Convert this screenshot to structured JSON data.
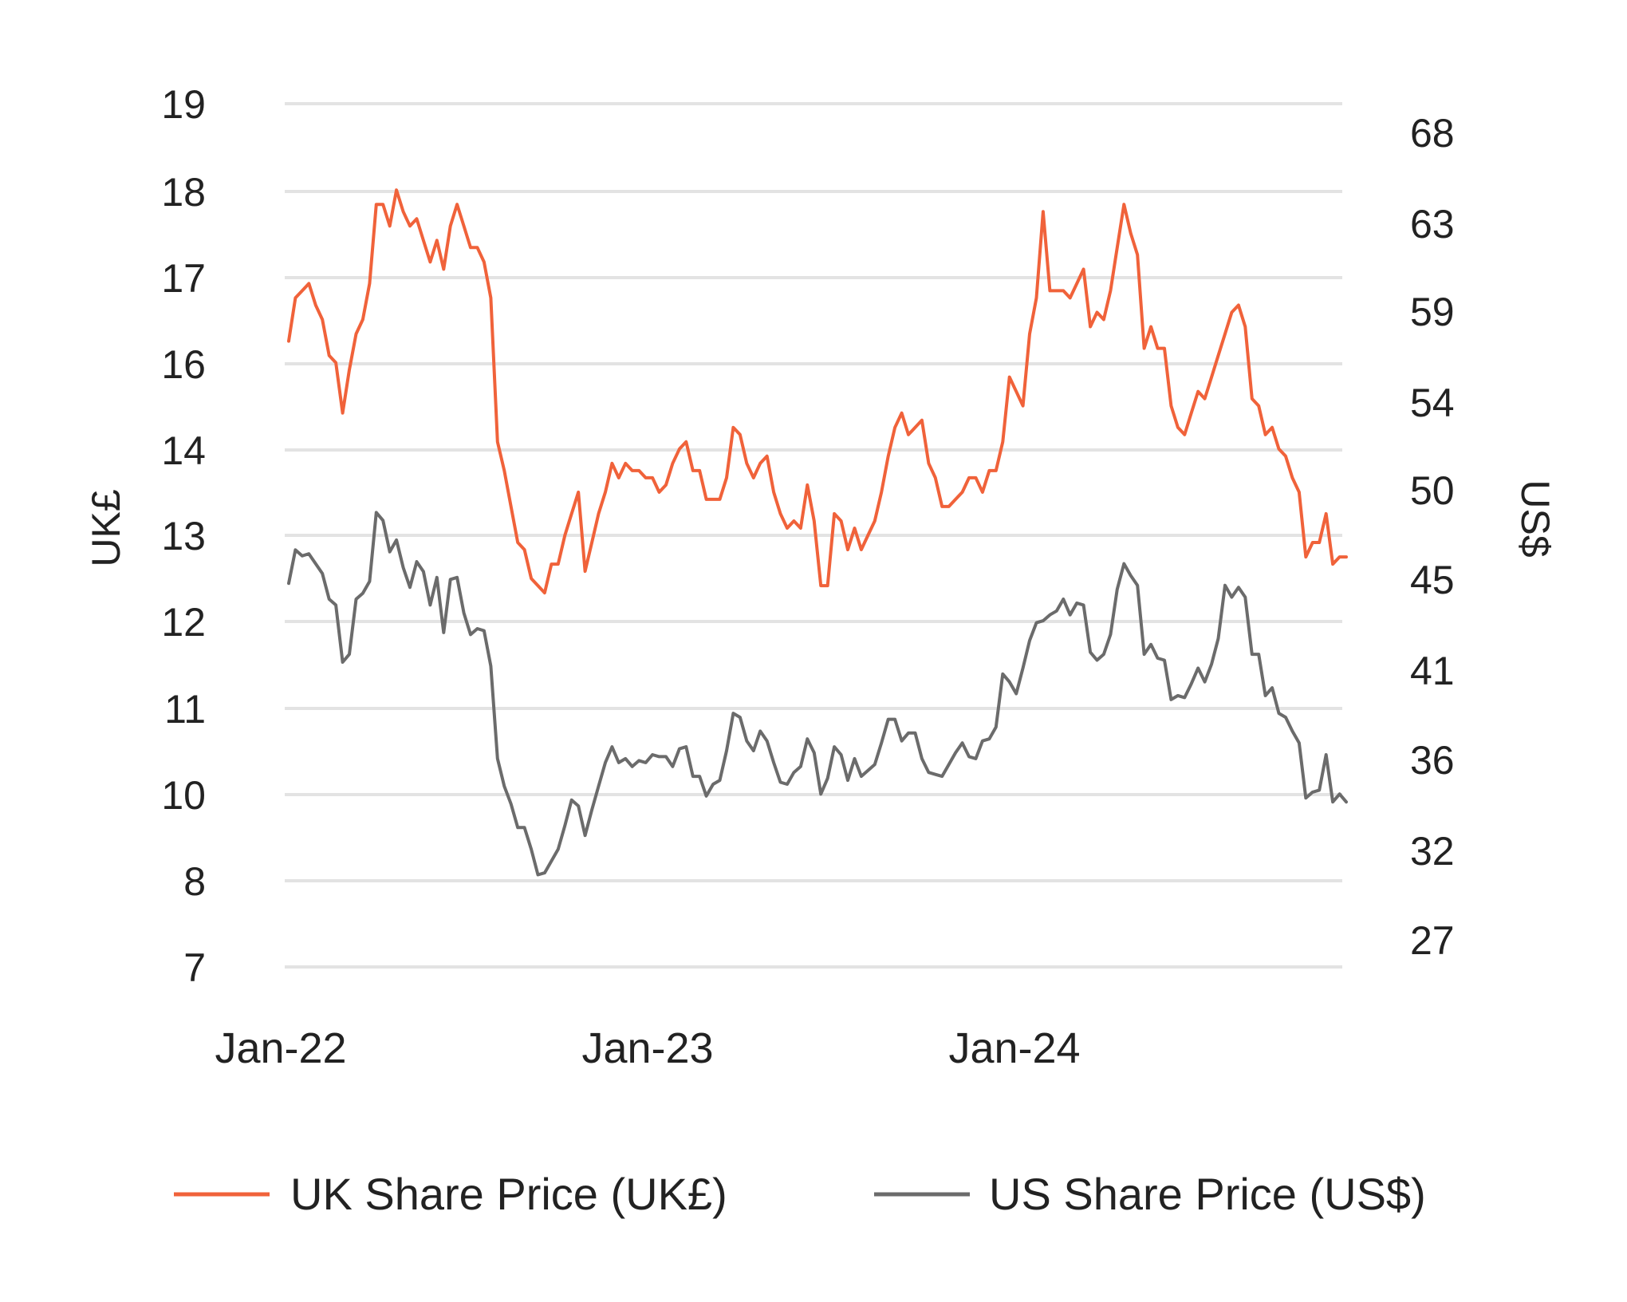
{
  "chart_data": {
    "type": "line",
    "title": "",
    "grid": true,
    "legend_position": "bottom",
    "left_axis": {
      "label": "UK£",
      "tick_labels": [
        "7",
        "8",
        "10",
        "11",
        "12",
        "13",
        "14",
        "16",
        "17",
        "18",
        "19"
      ]
    },
    "right_axis": {
      "label": "US$",
      "tick_labels": [
        "27",
        "32",
        "36",
        "41",
        "45",
        "50",
        "54",
        "59",
        "63",
        "68"
      ]
    },
    "x_axis": {
      "label": "",
      "range": [
        "2022-01",
        "2024-12"
      ],
      "tick_labels": [
        "Jan-22",
        "Jan-23",
        "Jan-24"
      ]
    },
    "series": [
      {
        "name": "UK Share Price (UK£)",
        "color": "#f0623a",
        "axis": "left",
        "values": [
          15.7,
          16.3,
          16.4,
          16.5,
          16.2,
          16.0,
          15.5,
          15.4,
          14.7,
          15.3,
          15.8,
          16.0,
          16.5,
          17.6,
          17.6,
          17.3,
          17.8,
          17.5,
          17.3,
          17.4,
          17.1,
          16.8,
          17.1,
          16.7,
          17.3,
          17.6,
          17.3,
          17.0,
          17.0,
          16.8,
          16.3,
          14.3,
          13.9,
          13.4,
          12.9,
          12.8,
          12.4,
          12.3,
          12.2,
          12.6,
          12.6,
          13.0,
          13.3,
          13.6,
          12.5,
          12.9,
          13.3,
          13.6,
          14.0,
          13.8,
          14.0,
          13.9,
          13.9,
          13.8,
          13.8,
          13.6,
          13.7,
          14.0,
          14.2,
          14.3,
          13.9,
          13.9,
          13.5,
          13.5,
          13.5,
          13.8,
          14.5,
          14.4,
          14.0,
          13.8,
          14.0,
          14.1,
          13.6,
          13.3,
          13.1,
          13.2,
          13.1,
          13.7,
          13.2,
          12.3,
          12.3,
          13.3,
          13.2,
          12.8,
          13.1,
          12.8,
          13.0,
          13.2,
          13.6,
          14.1,
          14.5,
          14.7,
          14.4,
          14.5,
          14.6,
          14.0,
          13.8,
          13.4,
          13.4,
          13.5,
          13.6,
          13.8,
          13.8,
          13.6,
          13.9,
          13.9,
          14.3,
          15.2,
          15.0,
          14.8,
          15.8,
          16.3,
          17.5,
          16.4,
          16.4,
          16.4,
          16.3,
          16.5,
          16.7,
          15.9,
          16.1,
          16.0,
          16.4,
          17.0,
          17.6,
          17.2,
          16.9,
          15.6,
          15.9,
          15.6,
          15.6,
          14.8,
          14.5,
          14.4,
          14.7,
          15.0,
          14.9,
          15.2,
          15.5,
          15.8,
          16.1,
          16.2,
          15.9,
          14.9,
          14.8,
          14.4,
          14.5,
          14.2,
          14.1,
          13.8,
          13.6,
          12.7,
          12.9,
          12.9,
          13.3,
          12.6,
          12.7,
          12.7
        ],
        "color_note": "orange"
      },
      {
        "name": "US Share Price (US$)",
        "color": "#6b6b6b",
        "axis": "right",
        "values": [
          45.1,
          46.8,
          46.5,
          46.6,
          46.1,
          45.6,
          44.3,
          44.0,
          41.1,
          41.5,
          44.3,
          44.6,
          45.2,
          48.7,
          48.3,
          46.7,
          47.3,
          45.9,
          44.9,
          46.2,
          45.7,
          44.0,
          45.4,
          42.6,
          45.3,
          45.4,
          43.6,
          42.5,
          42.8,
          42.7,
          40.9,
          36.2,
          34.8,
          33.9,
          32.7,
          32.7,
          31.6,
          30.3,
          30.4,
          31.0,
          31.6,
          32.8,
          34.1,
          33.8,
          32.3,
          33.6,
          34.8,
          36.0,
          36.8,
          36.0,
          36.2,
          35.8,
          36.1,
          36.0,
          36.4,
          36.3,
          36.3,
          35.8,
          36.7,
          36.8,
          35.3,
          35.3,
          34.3,
          34.9,
          35.1,
          36.6,
          38.5,
          38.3,
          37.1,
          36.6,
          37.6,
          37.1,
          36.0,
          35.0,
          34.9,
          35.5,
          35.8,
          37.2,
          36.5,
          34.4,
          35.2,
          36.8,
          36.4,
          35.1,
          36.2,
          35.3,
          35.6,
          35.9,
          37.0,
          38.2,
          38.2,
          37.1,
          37.5,
          37.5,
          36.2,
          35.5,
          35.4,
          35.3,
          35.9,
          36.5,
          37.0,
          36.3,
          36.2,
          37.1,
          37.2,
          37.8,
          40.5,
          40.1,
          39.5,
          40.8,
          42.2,
          43.1,
          43.2,
          43.5,
          43.7,
          44.3,
          43.5,
          44.1,
          44.0,
          41.6,
          41.2,
          41.5,
          42.5,
          44.8,
          46.1,
          45.5,
          45.0,
          41.5,
          42.0,
          41.3,
          41.2,
          39.2,
          39.4,
          39.3,
          40.0,
          40.8,
          40.1,
          41.0,
          42.3,
          45.0,
          44.4,
          44.9,
          44.4,
          41.5,
          41.5,
          39.4,
          39.8,
          38.5,
          38.3,
          37.6,
          37.0,
          34.2,
          34.5,
          34.6,
          36.4,
          34.0,
          34.4,
          34.0
        ]
      }
    ]
  }
}
